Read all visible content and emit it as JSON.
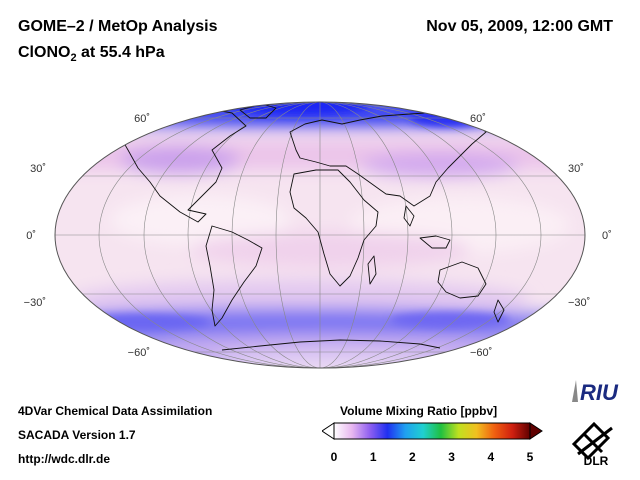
{
  "header": {
    "title": "GOME–2 / MetOp Analysis",
    "subtitle_main": "ClONO",
    "subtitle_sub": "2",
    "subtitle_rest": " at 55.4 hPa",
    "datetime": "Nov 05, 2009, 12:00 GMT"
  },
  "map": {
    "projection": "Mollweide",
    "latitude_labels": {
      "n60": "60˚",
      "n30": "30˚",
      "eq": "0˚",
      "s30": "−30˚",
      "s60": "−60˚"
    }
  },
  "footer": {
    "line1": "4DVar Chemical Data Assimilation",
    "line2": "SACADA Version 1.7",
    "line3": "http://wdc.dlr.de"
  },
  "colorbar": {
    "title": "Volume Mixing Ratio [ppbv]",
    "ticks": [
      "0",
      "1",
      "2",
      "3",
      "4",
      "5"
    ],
    "colors": [
      "#ffffff",
      "#e8b8f0",
      "#9060f0",
      "#2030f0",
      "#20a0f0",
      "#20d0d0",
      "#20c040",
      "#c0e020",
      "#f0c020",
      "#f06010",
      "#d02010",
      "#600000"
    ]
  },
  "logos": {
    "riu": "RIU",
    "dlr": "DLR"
  }
}
